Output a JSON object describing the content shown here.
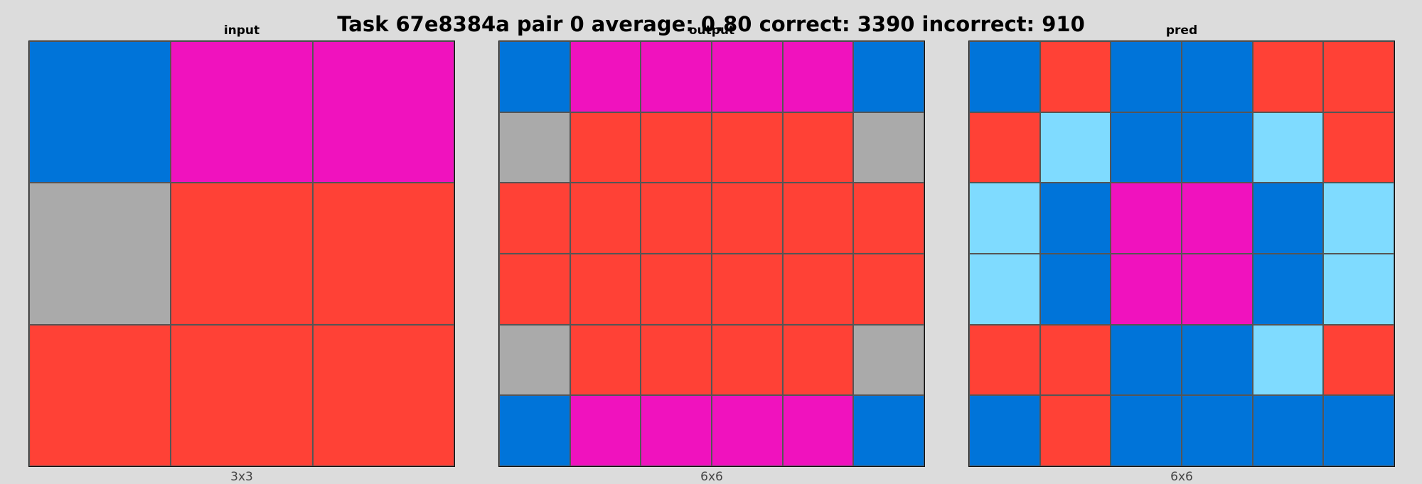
{
  "title": "Task 67e8384a pair 0 average: 0.80 correct: 3390 incorrect: 910",
  "palette": {
    "1": "#0074D9",
    "2": "#FF4136",
    "5": "#AAAAAA",
    "6": "#F012BE",
    "8": "#7FDBFF"
  },
  "panels": [
    {
      "title": "input",
      "caption": "3x3",
      "grid": [
        [
          1,
          6,
          6
        ],
        [
          5,
          2,
          2
        ],
        [
          2,
          2,
          2
        ]
      ]
    },
    {
      "title": "output",
      "caption": "6x6",
      "grid": [
        [
          1,
          6,
          6,
          6,
          6,
          1
        ],
        [
          5,
          2,
          2,
          2,
          2,
          5
        ],
        [
          2,
          2,
          2,
          2,
          2,
          2
        ],
        [
          2,
          2,
          2,
          2,
          2,
          2
        ],
        [
          5,
          2,
          2,
          2,
          2,
          5
        ],
        [
          1,
          6,
          6,
          6,
          6,
          1
        ]
      ]
    },
    {
      "title": "pred",
      "caption": "6x6",
      "grid": [
        [
          1,
          2,
          1,
          1,
          2,
          2
        ],
        [
          2,
          8,
          1,
          1,
          8,
          2
        ],
        [
          8,
          1,
          6,
          6,
          1,
          8
        ],
        [
          8,
          1,
          6,
          6,
          1,
          8
        ],
        [
          2,
          2,
          1,
          1,
          8,
          2
        ],
        [
          1,
          2,
          1,
          1,
          1,
          1
        ]
      ]
    }
  ]
}
